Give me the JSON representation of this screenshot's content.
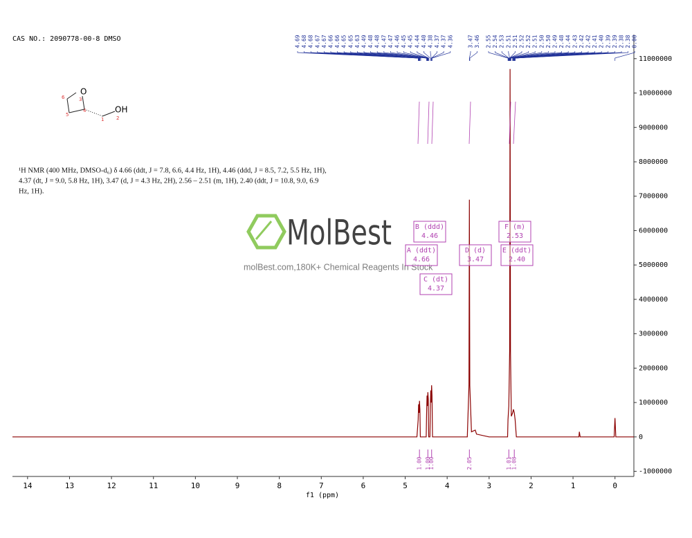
{
  "chart_data": {
    "type": "line",
    "header": "CAS NO.: 2090778-00-8 DMSO",
    "description": [
      "¹H NMR (400 MHz, DMSO-d₆) δ 4.66 (ddt, J = 7.8, 6.6, 4.4 Hz, 1H), 4.46 (ddd, J = 8.5, 7.2, 5.5 Hz, 1H),",
      "4.37 (dt, J = 9.0, 5.8 Hz, 1H), 3.47 (d, J = 4.3 Hz, 2H), 2.56 – 2.51 (m, 1H), 2.40 (ddt, J = 10.8, 9.0, 6.9",
      "Hz, 1H)."
    ],
    "structure_labels": {
      "oxygen": "O",
      "hydroxyl": "OH",
      "atoms": [
        "1",
        "2",
        "3",
        "4",
        "5",
        "6"
      ]
    },
    "watermark": {
      "brand": "MolBest",
      "tagline": "molBest.com,180K+ Chemical Reagents In Stock"
    },
    "x_label": "f1 (ppm)",
    "xlim": [
      14.36,
      -0.45
    ],
    "xticks": [
      14,
      13,
      12,
      11,
      10,
      9,
      8,
      7,
      6,
      5,
      4,
      3,
      2,
      1,
      0
    ],
    "ylim": [
      -1150000,
      11700000
    ],
    "yticks": [
      -1000000,
      0,
      1000000,
      2000000,
      3000000,
      4000000,
      5000000,
      6000000,
      7000000,
      8000000,
      9000000,
      10000000,
      11000000
    ],
    "series": [
      {
        "name": "spectrum",
        "color": "#8b0000",
        "x": [
          14.36,
          4.72,
          4.69,
          4.68,
          4.67,
          4.66,
          4.65,
          4.64,
          4.5,
          4.49,
          4.48,
          4.47,
          4.46,
          4.45,
          4.44,
          4.41,
          4.4,
          4.39,
          4.38,
          4.37,
          4.36,
          4.35,
          3.52,
          3.48,
          3.47,
          3.46,
          3.42,
          3.33,
          3.3,
          3.0,
          2.56,
          2.55,
          2.53,
          2.51,
          2.5,
          2.49,
          2.47,
          2.44,
          2.42,
          2.4,
          2.38,
          2.35,
          0.86,
          0.85,
          0.83,
          0.02,
          0,
          -0.02,
          -0.45
        ],
        "values": [
          0,
          0,
          500000,
          950000,
          700000,
          1050000,
          800000,
          0,
          0,
          700000,
          1200000,
          900000,
          1300000,
          1100000,
          0,
          0,
          900000,
          1350000,
          1000000,
          1500000,
          1200000,
          0,
          0,
          1500000,
          6900000,
          1500000,
          150000,
          200000,
          80000,
          0,
          0,
          500000,
          900000,
          2500000,
          10700000,
          2500000,
          600000,
          700000,
          800000,
          700000,
          500000,
          0,
          0,
          150000,
          0,
          0,
          550000,
          0,
          0
        ]
      }
    ],
    "peak_picks": [
      [
        4.69,
        4.68,
        4.68,
        4.67,
        4.67,
        4.66,
        4.66,
        4.65,
        4.65,
        4.63,
        4.49,
        4.48,
        4.48,
        4.47,
        4.47,
        4.46,
        4.45,
        4.45,
        4.44,
        {
          "value": 4.4,
          "label": "4.40"
        },
        4.38,
        4.37,
        4.37,
        4.36
      ],
      [
        3.47,
        3.46
      ],
      [
        2.55,
        2.54,
        2.53,
        2.51,
        2.51,
        2.52,
        2.52,
        2.51,
        {
          "value": 2.5,
          "label": "2.50"
        },
        {
          "value": 2.5,
          "label": "2.50"
        },
        2.49,
        2.48,
        2.44,
        2.43,
        2.42,
        2.42,
        2.41,
        {
          "value": 2.4,
          "label": "2.40"
        },
        2.39,
        2.39,
        2.38,
        2.38,
        {
          "value": 0,
          "label": "0.00"
        }
      ]
    ],
    "integrals": [
      {
        "x": 4.66,
        "label": "1.00"
      },
      {
        "x": 4.46,
        "label": "1.00"
      },
      {
        "x": 4.37,
        "label": "1.00"
      },
      {
        "x": 3.47,
        "label": "2.05"
      },
      {
        "x": 2.53,
        "label": "1.01"
      },
      {
        "x": 2.4,
        "label": "1.08"
      }
    ],
    "multiplets": [
      {
        "name": "B (ddd)",
        "shift": "4.46"
      },
      {
        "name": "A (ddt)",
        "shift": "4.66"
      },
      {
        "name": "C (dt)",
        "shift": "4.37"
      },
      {
        "name": "D (d)",
        "shift": "3.47"
      },
      {
        "name": "F (m)",
        "shift": "2.53"
      },
      {
        "name": "E (ddt)",
        "shift": "2.40"
      }
    ]
  }
}
